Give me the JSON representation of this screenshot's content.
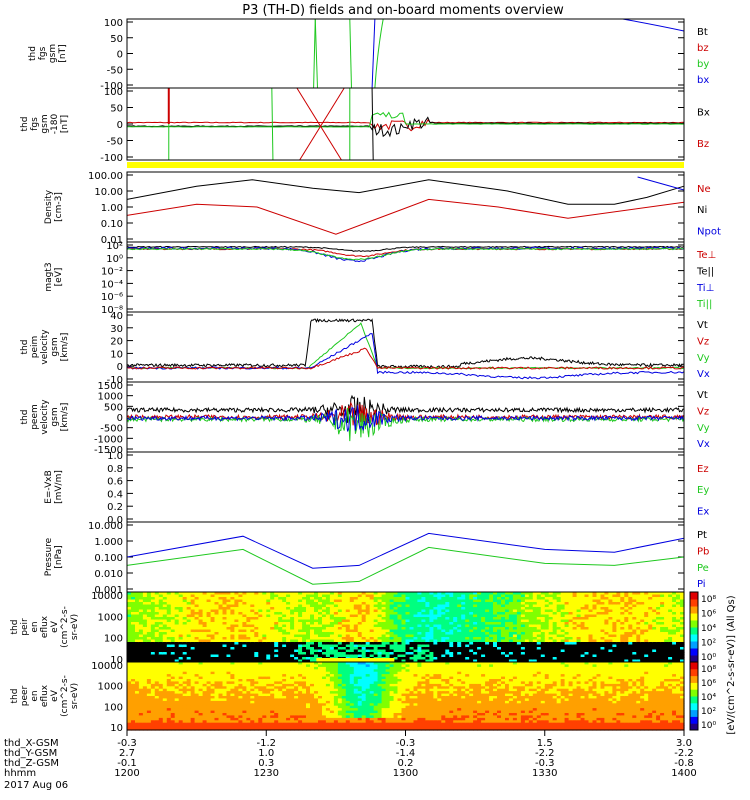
{
  "title": "P3 (TH-D) fields and on-board moments overview",
  "colors": {
    "black": "#000000",
    "red": "#cc0000",
    "green": "#1ec81e",
    "blue": "#0000e0",
    "yellow": "#ffff00"
  },
  "panels": [
    {
      "key": "fgs",
      "ylabel": [
        "thd",
        "fgs",
        "gsm",
        "[nT]"
      ],
      "ticks": [
        "100",
        "50",
        "0",
        "-50",
        "-100"
      ],
      "legend": [
        {
          "text": "Bt",
          "color": "#000000"
        },
        {
          "text": "bz",
          "color": "#cc0000"
        },
        {
          "text": "by",
          "color": "#1ec81e"
        },
        {
          "text": "bx",
          "color": "#0000e0"
        }
      ]
    },
    {
      "key": "fgs_dsl",
      "ylabel": [
        "thd",
        "fgs",
        "gsm",
        "-180",
        "[nT]"
      ],
      "ticks": [
        "100",
        "50",
        "0",
        "-50",
        "-100"
      ],
      "legend": [
        {
          "text": "Bx",
          "color": "#000000"
        },
        {
          "text": "Bz",
          "color": "#cc0000"
        }
      ]
    },
    {
      "key": "density",
      "ylabel": [
        "Density",
        "[cm-3]"
      ],
      "ticks": [
        "100.00",
        "10.00",
        "1.00",
        "0.10",
        "0.01"
      ],
      "legend": [
        {
          "text": "Ne",
          "color": "#cc0000"
        },
        {
          "text": "Ni",
          "color": "#000000"
        },
        {
          "text": "Npot",
          "color": "#0000e0"
        }
      ]
    },
    {
      "key": "temperature",
      "ylabel": [
        "magt3",
        "[eV]"
      ],
      "ticks": [
        "10²",
        "10⁰",
        "10⁻²",
        "10⁻⁴",
        "10⁻⁶",
        "10⁻⁸"
      ],
      "legend": [
        {
          "text": "Te⊥",
          "color": "#cc0000"
        },
        {
          "text": "Te||",
          "color": "#000000"
        },
        {
          "text": "Ti⊥",
          "color": "#0000e0"
        },
        {
          "text": "Ti||",
          "color": "#1ec81e"
        }
      ]
    },
    {
      "key": "peim_velocity",
      "ylabel": [
        "thd",
        "peim",
        "velocity",
        "gsm",
        "[km/s]"
      ],
      "ticks": [
        "40",
        "30",
        "20",
        "10",
        "0",
        "-10"
      ],
      "legend": [
        {
          "text": "Vt",
          "color": "#000000"
        },
        {
          "text": "Vz",
          "color": "#cc0000"
        },
        {
          "text": "Vy",
          "color": "#1ec81e"
        },
        {
          "text": "Vx",
          "color": "#0000e0"
        }
      ]
    },
    {
      "key": "peem_velocity",
      "ylabel": [
        "thd",
        "peem",
        "velocity",
        "gsm",
        "[km/s]"
      ],
      "ticks": [
        "1500",
        "1000",
        "500",
        "0",
        "-500",
        "-1000",
        "-1500"
      ],
      "legend": [
        {
          "text": "Vt",
          "color": "#000000"
        },
        {
          "text": "Vz",
          "color": "#cc0000"
        },
        {
          "text": "Vy",
          "color": "#1ec81e"
        },
        {
          "text": "Vx",
          "color": "#0000e0"
        }
      ]
    },
    {
      "key": "efield",
      "ylabel": [
        "E=-VxB",
        "[mV/m]"
      ],
      "ticks": [
        "1.0",
        "0.8",
        "0.6",
        "0.4",
        "0.2",
        "0.0"
      ],
      "legend": [
        {
          "text": "Ez",
          "color": "#cc0000"
        },
        {
          "text": "Ey",
          "color": "#1ec81e"
        },
        {
          "text": "Ex",
          "color": "#0000e0"
        }
      ]
    },
    {
      "key": "pressure",
      "ylabel": [
        "Pressure",
        "[nPa]"
      ],
      "ticks": [
        "10.000",
        "1.000",
        "0.100",
        "0.010",
        "0.001"
      ],
      "legend": [
        {
          "text": "Pt",
          "color": "#000000"
        },
        {
          "text": "Pb",
          "color": "#cc0000"
        },
        {
          "text": "Pe",
          "color": "#1ec81e"
        },
        {
          "text": "Pi",
          "color": "#0000e0"
        }
      ]
    },
    {
      "key": "ion_spectrogram",
      "ylabel": [
        "thd",
        "peir",
        "en",
        "eflux",
        "eV",
        "(cm^2-s-",
        "sr-eV)"
      ],
      "ticks": [
        "10000",
        "1000",
        "100",
        "10"
      ]
    },
    {
      "key": "electron_spectrogram",
      "ylabel": [
        "thd",
        "peer",
        "en",
        "eflux",
        "eV",
        "(cm^2-s-",
        "sr-eV)"
      ],
      "ticks": [
        "10000",
        "1000",
        "100",
        "10"
      ]
    }
  ],
  "colorbars": [
    {
      "ticks": [
        "10⁸",
        "10⁶",
        "10⁴",
        "10²",
        "10⁰"
      ]
    },
    {
      "ticks": [
        "10⁸",
        "10⁶",
        "10⁴",
        "10²",
        "10⁰"
      ]
    }
  ],
  "colorbar_label": "[eV/(cm^2-s-sr-eV)] (All Qs)",
  "xaxis": {
    "row_labels": [
      "thd_X-GSM",
      "thd_Y-GSM",
      "thd_Z-GSM",
      "hhmm",
      "2017 Aug 06"
    ],
    "columns": [
      {
        "x": "-0.3",
        "y": "2.7",
        "z": "-0.1",
        "hhmm": "1200"
      },
      {
        "x": "-1.2",
        "y": "1.0",
        "z": "0.3",
        "hhmm": "1230"
      },
      {
        "x": "-0.3",
        "y": "-1.4",
        "z": "0.2",
        "hhmm": "1300"
      },
      {
        "x": "1.5",
        "y": "-2.2",
        "z": "-0.3",
        "hhmm": "1330"
      },
      {
        "x": "3.0",
        "y": "-2.2",
        "z": "-0.8",
        "hhmm": "1400"
      }
    ]
  },
  "chart_data": {
    "type": "line",
    "title": "P3 (TH-D) fields and on-board moments overview",
    "x_label": "hhmm",
    "x_ticks": [
      "1200",
      "1230",
      "1300",
      "1330",
      "1400"
    ],
    "date": "2017 Aug 06",
    "series": [
      {
        "name": "Ni",
        "panel": "density",
        "scale": "log",
        "x": [
          1200,
          1215,
          1227,
          1240,
          1250,
          1305,
          1322,
          1335,
          1345,
          1352,
          1400
        ],
        "y": [
          3,
          20,
          50,
          15,
          8,
          50,
          10,
          1.5,
          1.5,
          4,
          20
        ]
      },
      {
        "name": "Ne",
        "panel": "density",
        "scale": "log",
        "x": [
          1200,
          1215,
          1228,
          1245,
          1305,
          1320,
          1335,
          1400
        ],
        "y": [
          0.3,
          1.5,
          1,
          0.02,
          3,
          1,
          0.2,
          2
        ]
      },
      {
        "name": "Vt",
        "panel": "peim_velocity",
        "x": [
          1200,
          1225,
          1232,
          1235,
          1250,
          1252,
          1300,
          1330,
          1340,
          1400
        ],
        "y": [
          1,
          2,
          30,
          35,
          38,
          4,
          1,
          6,
          5,
          1
        ]
      },
      {
        "name": "Pi",
        "panel": "pressure",
        "scale": "log",
        "x": [
          1200,
          1225,
          1240,
          1250,
          1305,
          1330,
          1345,
          1400
        ],
        "y": [
          0.1,
          2,
          0.02,
          0.03,
          3,
          0.3,
          0.2,
          1.5
        ]
      },
      {
        "name": "Pe",
        "panel": "pressure",
        "scale": "log",
        "x": [
          1200,
          1225,
          1240,
          1250,
          1305,
          1330,
          1345,
          1400
        ],
        "y": [
          0.03,
          0.3,
          0.002,
          0.003,
          0.4,
          0.04,
          0.03,
          0.1
        ]
      }
    ]
  }
}
